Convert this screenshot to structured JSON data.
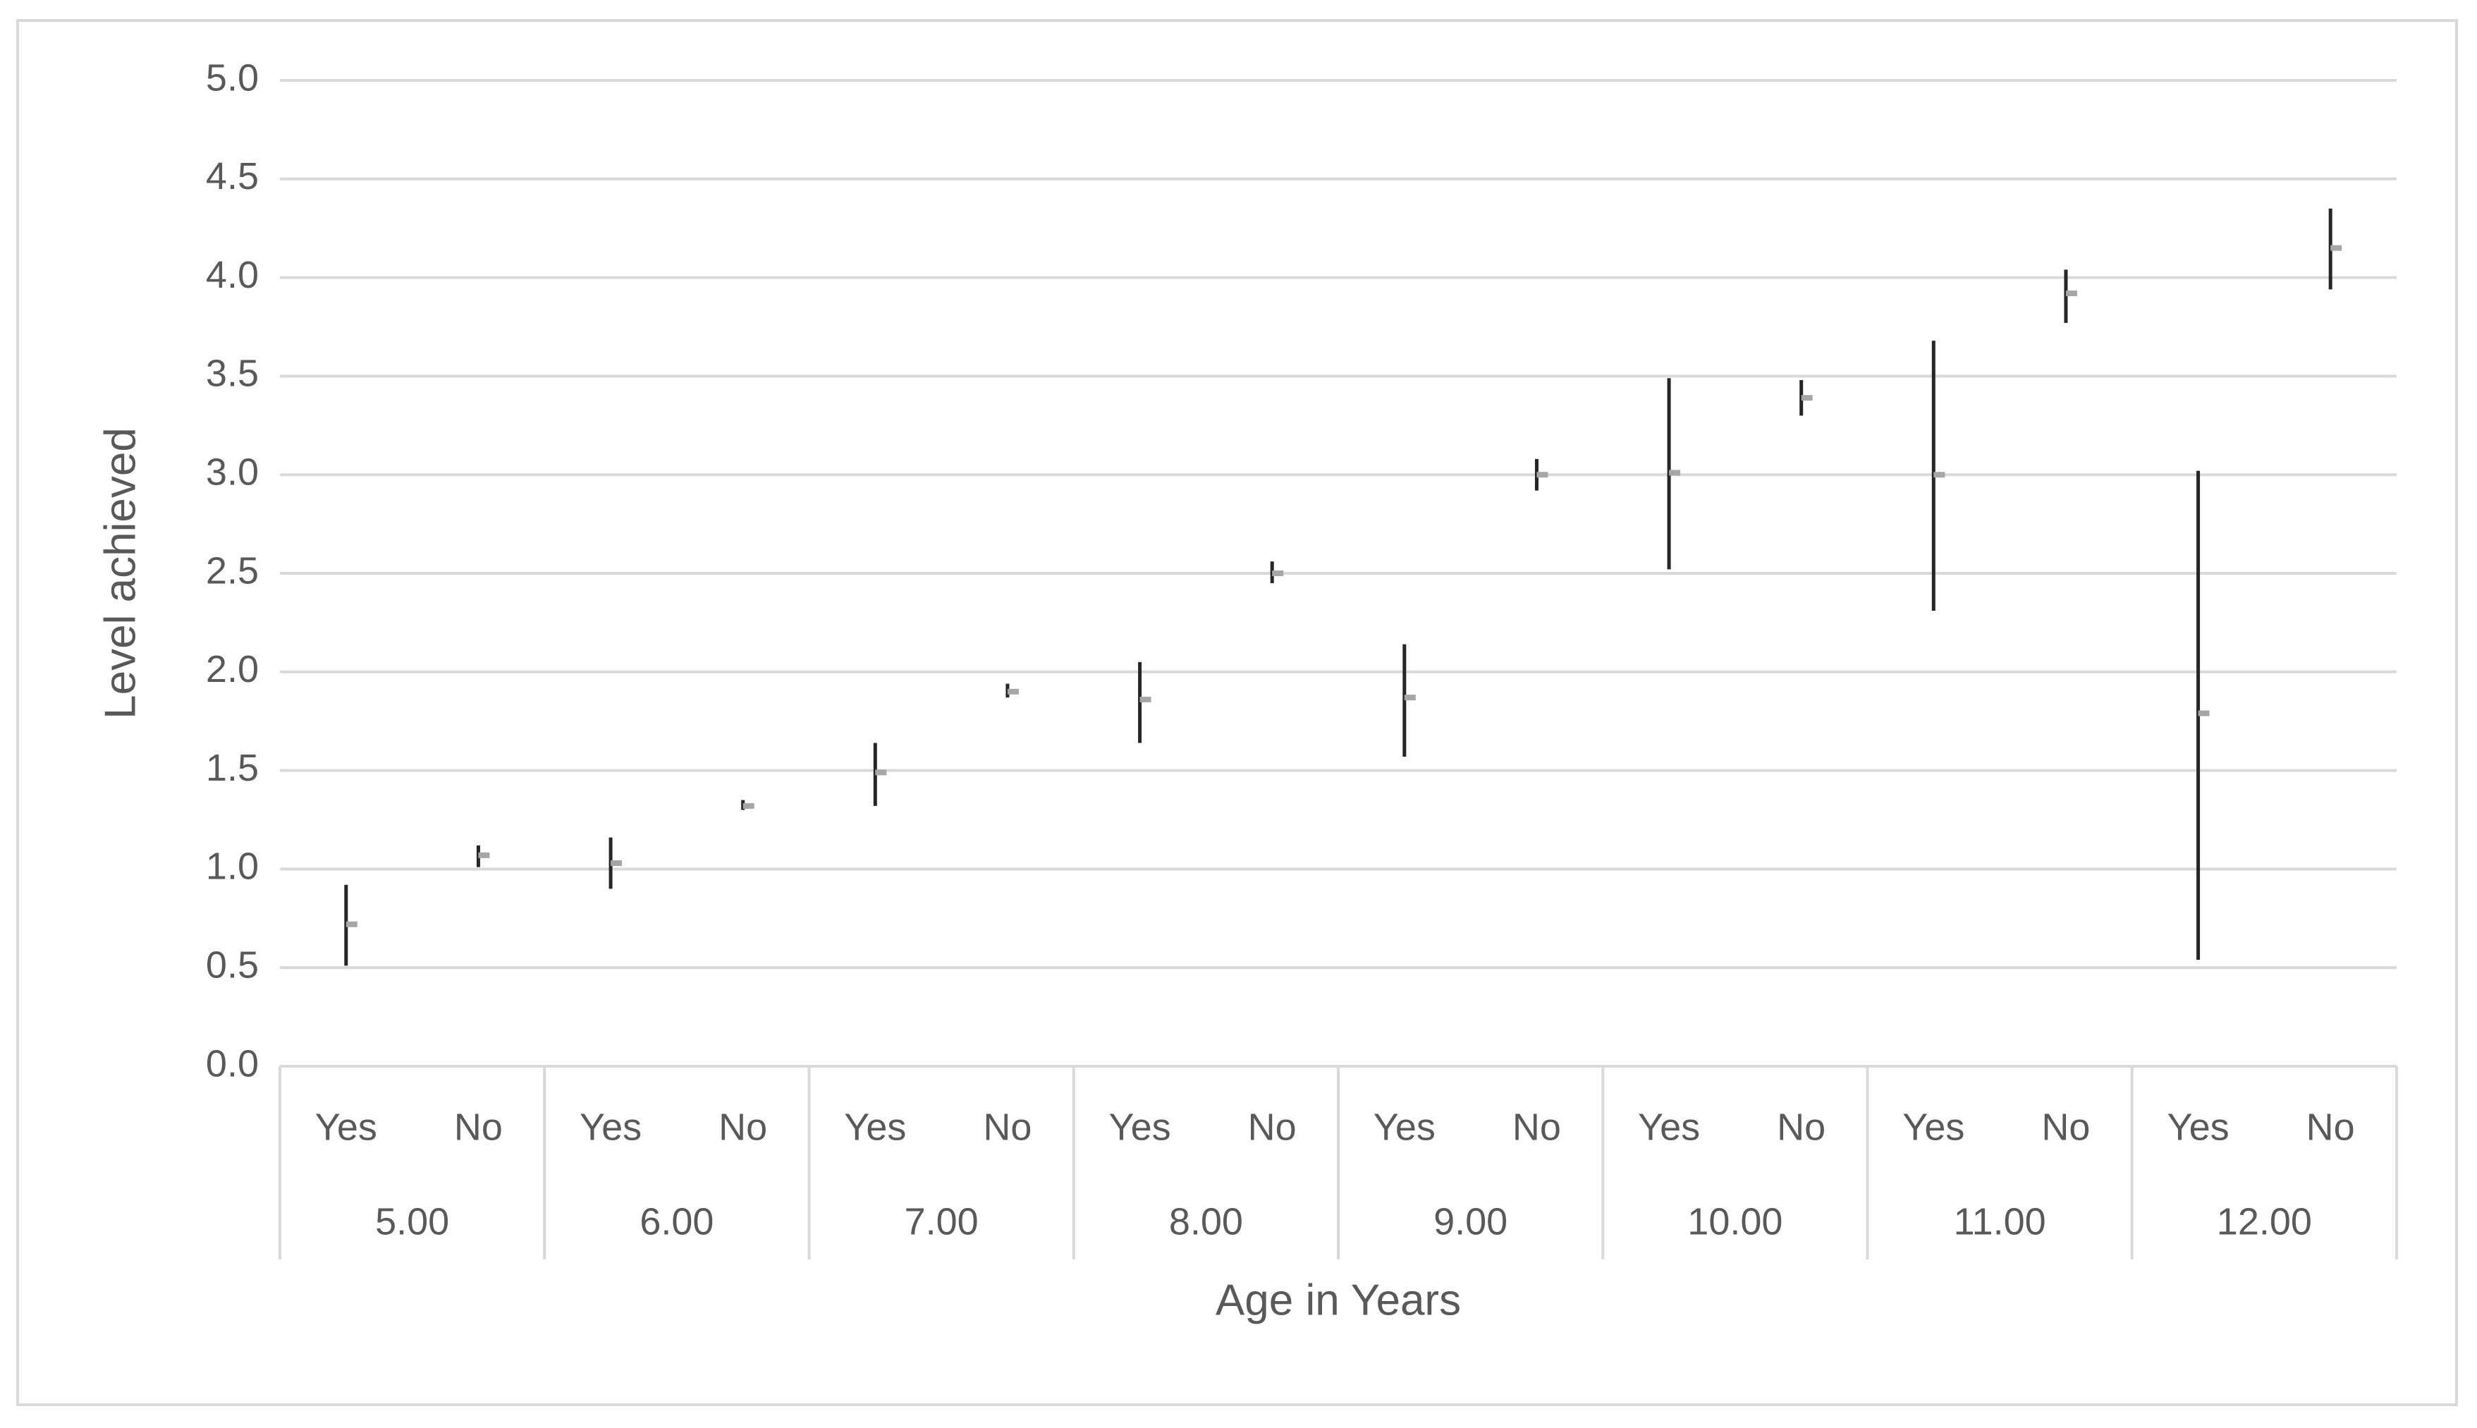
{
  "chart_data": {
    "type": "range",
    "y_label": "Level achieved",
    "x_label": "Age in Years",
    "categories": [
      "Yes",
      "No",
      "Yes",
      "No",
      "Yes",
      "No",
      "Yes",
      "No",
      "Yes",
      "No",
      "Yes",
      "No",
      "Yes",
      "No",
      "Yes",
      "No"
    ],
    "groups": [
      "5.00",
      "6.00",
      "7.00",
      "8.00",
      "9.00",
      "10.00",
      "11.00",
      "12.00"
    ],
    "high": [
      0.92,
      1.12,
      1.16,
      1.35,
      1.64,
      1.94,
      2.05,
      2.56,
      2.14,
      3.08,
      3.49,
      3.48,
      3.68,
      4.04,
      3.02,
      4.35
    ],
    "low": [
      0.51,
      1.01,
      0.9,
      1.3,
      1.32,
      1.87,
      1.64,
      2.45,
      1.57,
      2.92,
      2.52,
      3.3,
      2.31,
      3.77,
      0.54,
      3.94
    ],
    "mean": [
      0.72,
      1.07,
      1.03,
      1.32,
      1.49,
      1.9,
      1.86,
      2.5,
      1.87,
      3.0,
      3.01,
      3.39,
      3.0,
      3.92,
      1.79,
      4.15
    ],
    "range_color": "#262626",
    "mean_color": "#a6a6a6",
    "ylim": [
      0,
      5
    ],
    "yticks": [
      {
        "value": 0,
        "label": "0.0"
      },
      0.5,
      {
        "value": 1,
        "label": "1.0"
      },
      1.5,
      {
        "value": 2,
        "label": "2.0"
      },
      2.5,
      {
        "value": 3,
        "label": "3.0"
      },
      3.5,
      {
        "value": 4,
        "label": "4.0"
      },
      4.5,
      {
        "value": 5,
        "label": "5.0"
      }
    ],
    "grid": true
  }
}
